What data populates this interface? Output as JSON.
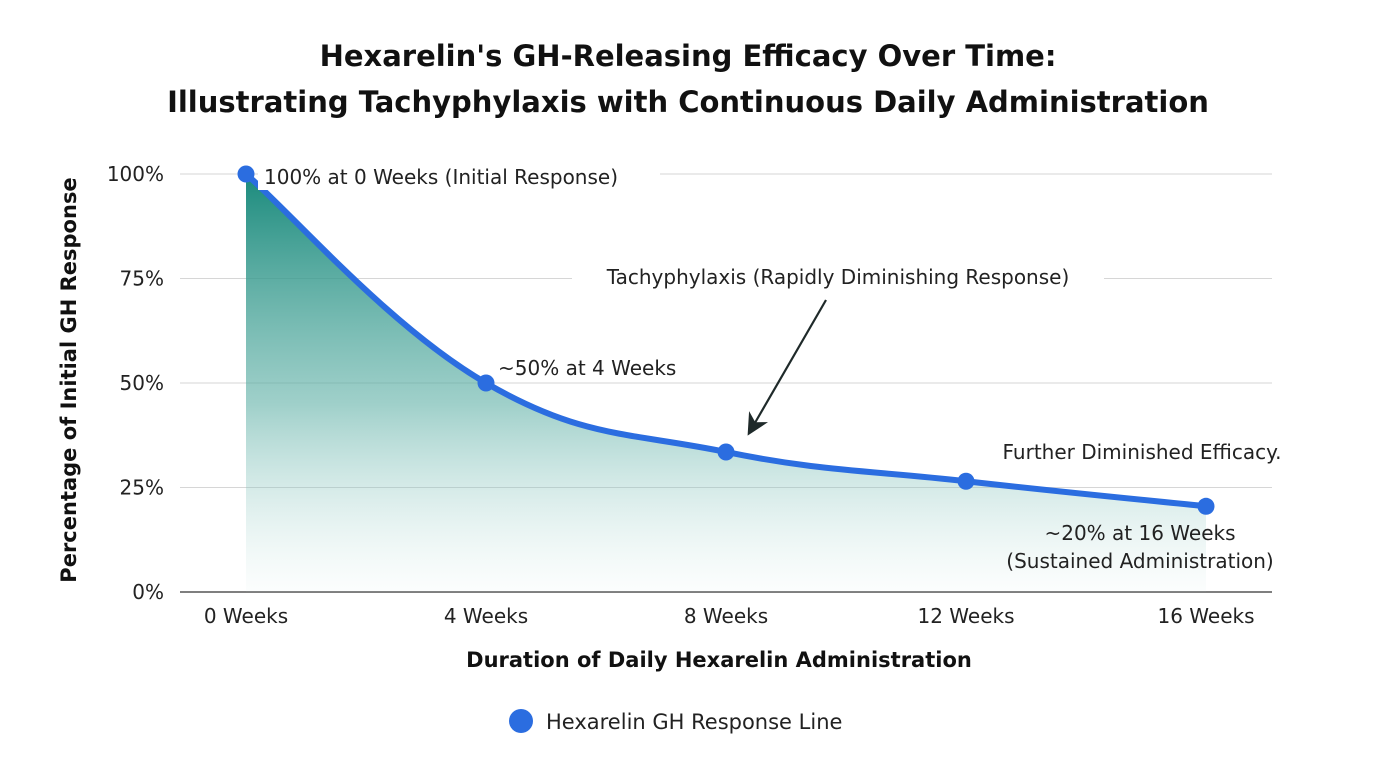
{
  "chart_data": {
    "type": "line",
    "title_lines": [
      "Hexarelin's GH-Releasing Efficacy Over Time:",
      "Illustrating Tachyphylaxis with Continuous Daily Administration"
    ],
    "xlabel": "Duration of Daily Hexarelin Administration",
    "ylabel": "Percentage of Initial GH Response",
    "x_ticks": [
      "0 Weeks",
      "4 Weeks",
      "8 Weeks",
      "12 Weeks",
      "16 Weeks"
    ],
    "y_ticks": [
      "0%",
      "25%",
      "50%",
      "75%",
      "100%"
    ],
    "xlim": [
      0,
      16
    ],
    "ylim": [
      0,
      100
    ],
    "grid": true,
    "series": [
      {
        "name": "Hexarelin GH Response Line",
        "color": "#2b6de0",
        "fill_color": "#1a8a7c",
        "x": [
          0,
          4,
          8,
          12,
          16
        ],
        "y": [
          100,
          50,
          33.5,
          26.5,
          20.5
        ]
      }
    ],
    "annotations": {
      "initial": "100% at 0 Weeks (Initial Response)",
      "week4": "~50% at 4 Weeks",
      "tachy": "Tachyphylaxis (Rapidly Diminishing Response)",
      "further": "Further Diminished Efficacy.",
      "final_1": "~20% at 16 Weeks",
      "final_2": "(Sustained Administration)"
    },
    "legend": {
      "placement": "bottom-center"
    }
  }
}
